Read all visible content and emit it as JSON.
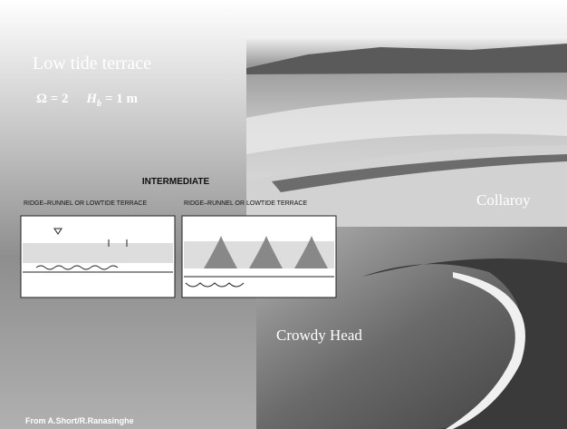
{
  "slide": {
    "title": "Low tide terrace",
    "formula": {
      "omega": "Ω = 2",
      "h_symbol": "H",
      "h_subscript": "b",
      "h_value": "= 1 m"
    },
    "diagram_heading": "INTERMEDIATE",
    "diagram_left_caption": "RIDGE–RUNNEL OR LOWTIDE TERRACE",
    "diagram_right_caption": "RIDGE–RUNNEL OR LOWTIDE TERRACE",
    "photo_top_label": "Collaroy",
    "photo_bottom_label": "Crowdy Head",
    "credit": "From A.Short/R.Ranasinghe"
  }
}
